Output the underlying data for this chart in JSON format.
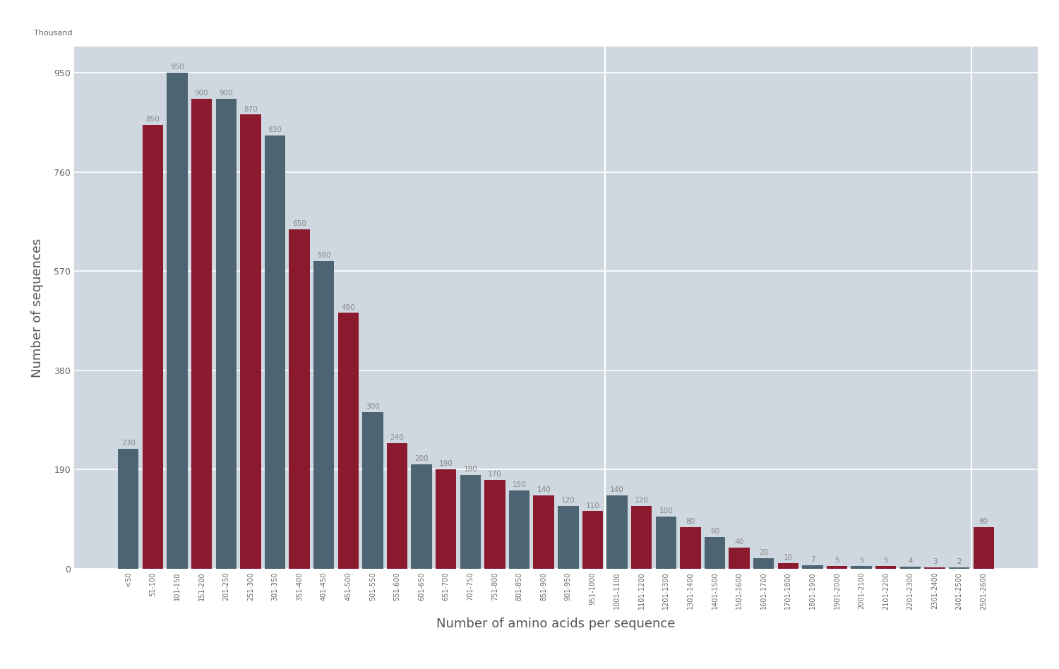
{
  "categories": [
    "<50",
    "51-100",
    "101-150",
    "151-200",
    "201-250",
    "251-300",
    "301-350",
    "351-400",
    "401-450",
    "451-500",
    "501-550",
    "551-600",
    "601-650",
    "651-700",
    "701-750",
    "751-800",
    "801-850",
    "851-900",
    "901-950",
    "951-1000",
    "1001-1100",
    "1101-1200",
    "1201-1300",
    "1301-1400",
    "1401-1500",
    "1501-1600",
    "1601-1700",
    "1701-1800",
    "1801-1900",
    "1901-2000",
    "2001-2100",
    "2101-2200",
    "2201-2300",
    "2301-2400",
    "2401-2500",
    "2501-2600"
  ],
  "values": [
    230,
    850,
    950,
    900,
    900,
    870,
    830,
    650,
    590,
    490,
    300,
    240,
    200,
    190,
    180,
    170,
    150,
    140,
    120,
    110,
    140,
    120,
    100,
    80,
    60,
    40,
    20,
    10,
    7,
    5,
    5,
    5,
    4,
    3,
    2,
    80
  ],
  "bar_colors": [
    "#4d6472",
    "#8b1a2e",
    "#4d6472",
    "#8b1a2e",
    "#4d6472",
    "#8b1a2e",
    "#4d6472",
    "#8b1a2e",
    "#4d6472",
    "#8b1a2e",
    "#4d6472",
    "#8b1a2e",
    "#4d6472",
    "#8b1a2e",
    "#4d6472",
    "#8b1a2e",
    "#4d6472",
    "#8b1a2e",
    "#4d6472",
    "#8b1a2e",
    "#4d6472",
    "#8b1a2e",
    "#4d6472",
    "#8b1a2e",
    "#4d6472",
    "#8b1a2e",
    "#4d6472",
    "#8b1a2e",
    "#4d6472",
    "#8b1a2e",
    "#4d6472",
    "#8b1a2e",
    "#4d6472",
    "#8b1a2e",
    "#4d6472",
    "#8b1a2e"
  ],
  "ylabel": "Number of sequences",
  "xlabel": "Number of amino acids per sequence",
  "ylim": [
    0,
    1000
  ],
  "yticks": [
    0,
    190,
    380,
    570,
    760,
    950
  ],
  "plot_bg_color": "#cfd8e0",
  "outer_bg_color": "#ffffff",
  "grid_color": "#ffffff",
  "tick_fontsize": 9,
  "ylabel_fontsize": 13,
  "xlabel_fontsize": 13,
  "thousand_label": "Thousand",
  "vline_positions": [
    20,
    35
  ]
}
